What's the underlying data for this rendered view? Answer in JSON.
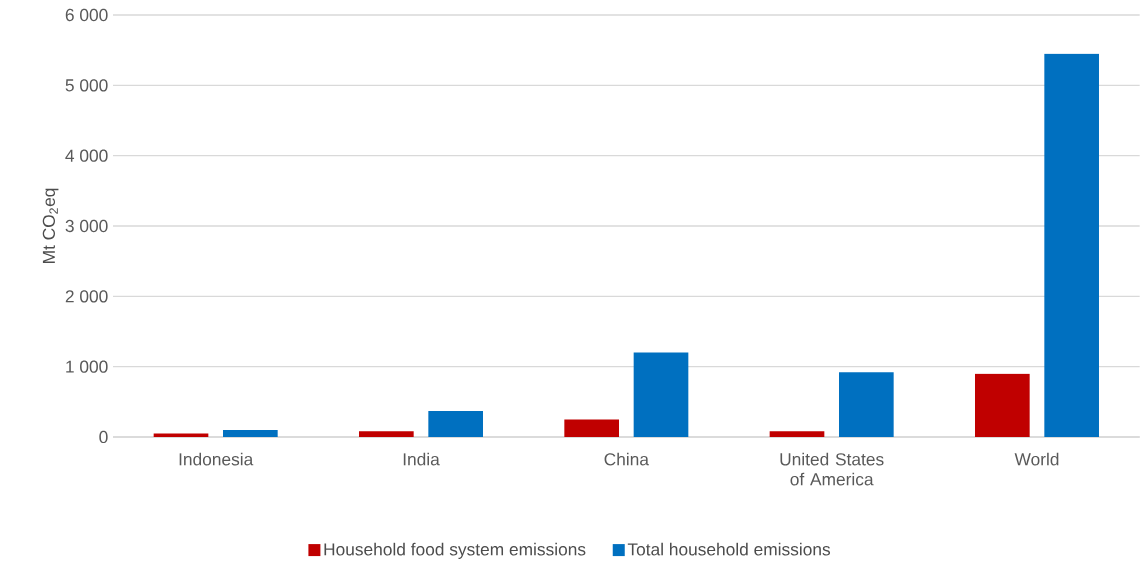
{
  "chart_data": {
    "type": "bar",
    "ylabel": "Mt CO$_{2}$eq",
    "categories": [
      "Indonesia",
      "India",
      "China",
      "United States of America",
      "World"
    ],
    "series": [
      {
        "name": "Household food system emissions",
        "color": "#c00000",
        "values": [
          50,
          80,
          250,
          80,
          900
        ]
      },
      {
        "name": "Total household emissions",
        "color": "#0070c0",
        "values": [
          100,
          370,
          1200,
          920,
          5450
        ]
      }
    ],
    "ylim": [
      0,
      6000
    ],
    "yticks": [
      {
        "value": 0,
        "label": "0"
      },
      {
        "value": 1000,
        "label": "1 000"
      },
      {
        "value": 2000,
        "label": "2 000"
      },
      {
        "value": 3000,
        "label": "3 000"
      },
      {
        "value": 4000,
        "label": "4 000"
      },
      {
        "value": 5000,
        "label": "5 000"
      },
      {
        "value": 6000,
        "label": "6 000"
      }
    ],
    "grid": "y",
    "legend": "bottom"
  }
}
